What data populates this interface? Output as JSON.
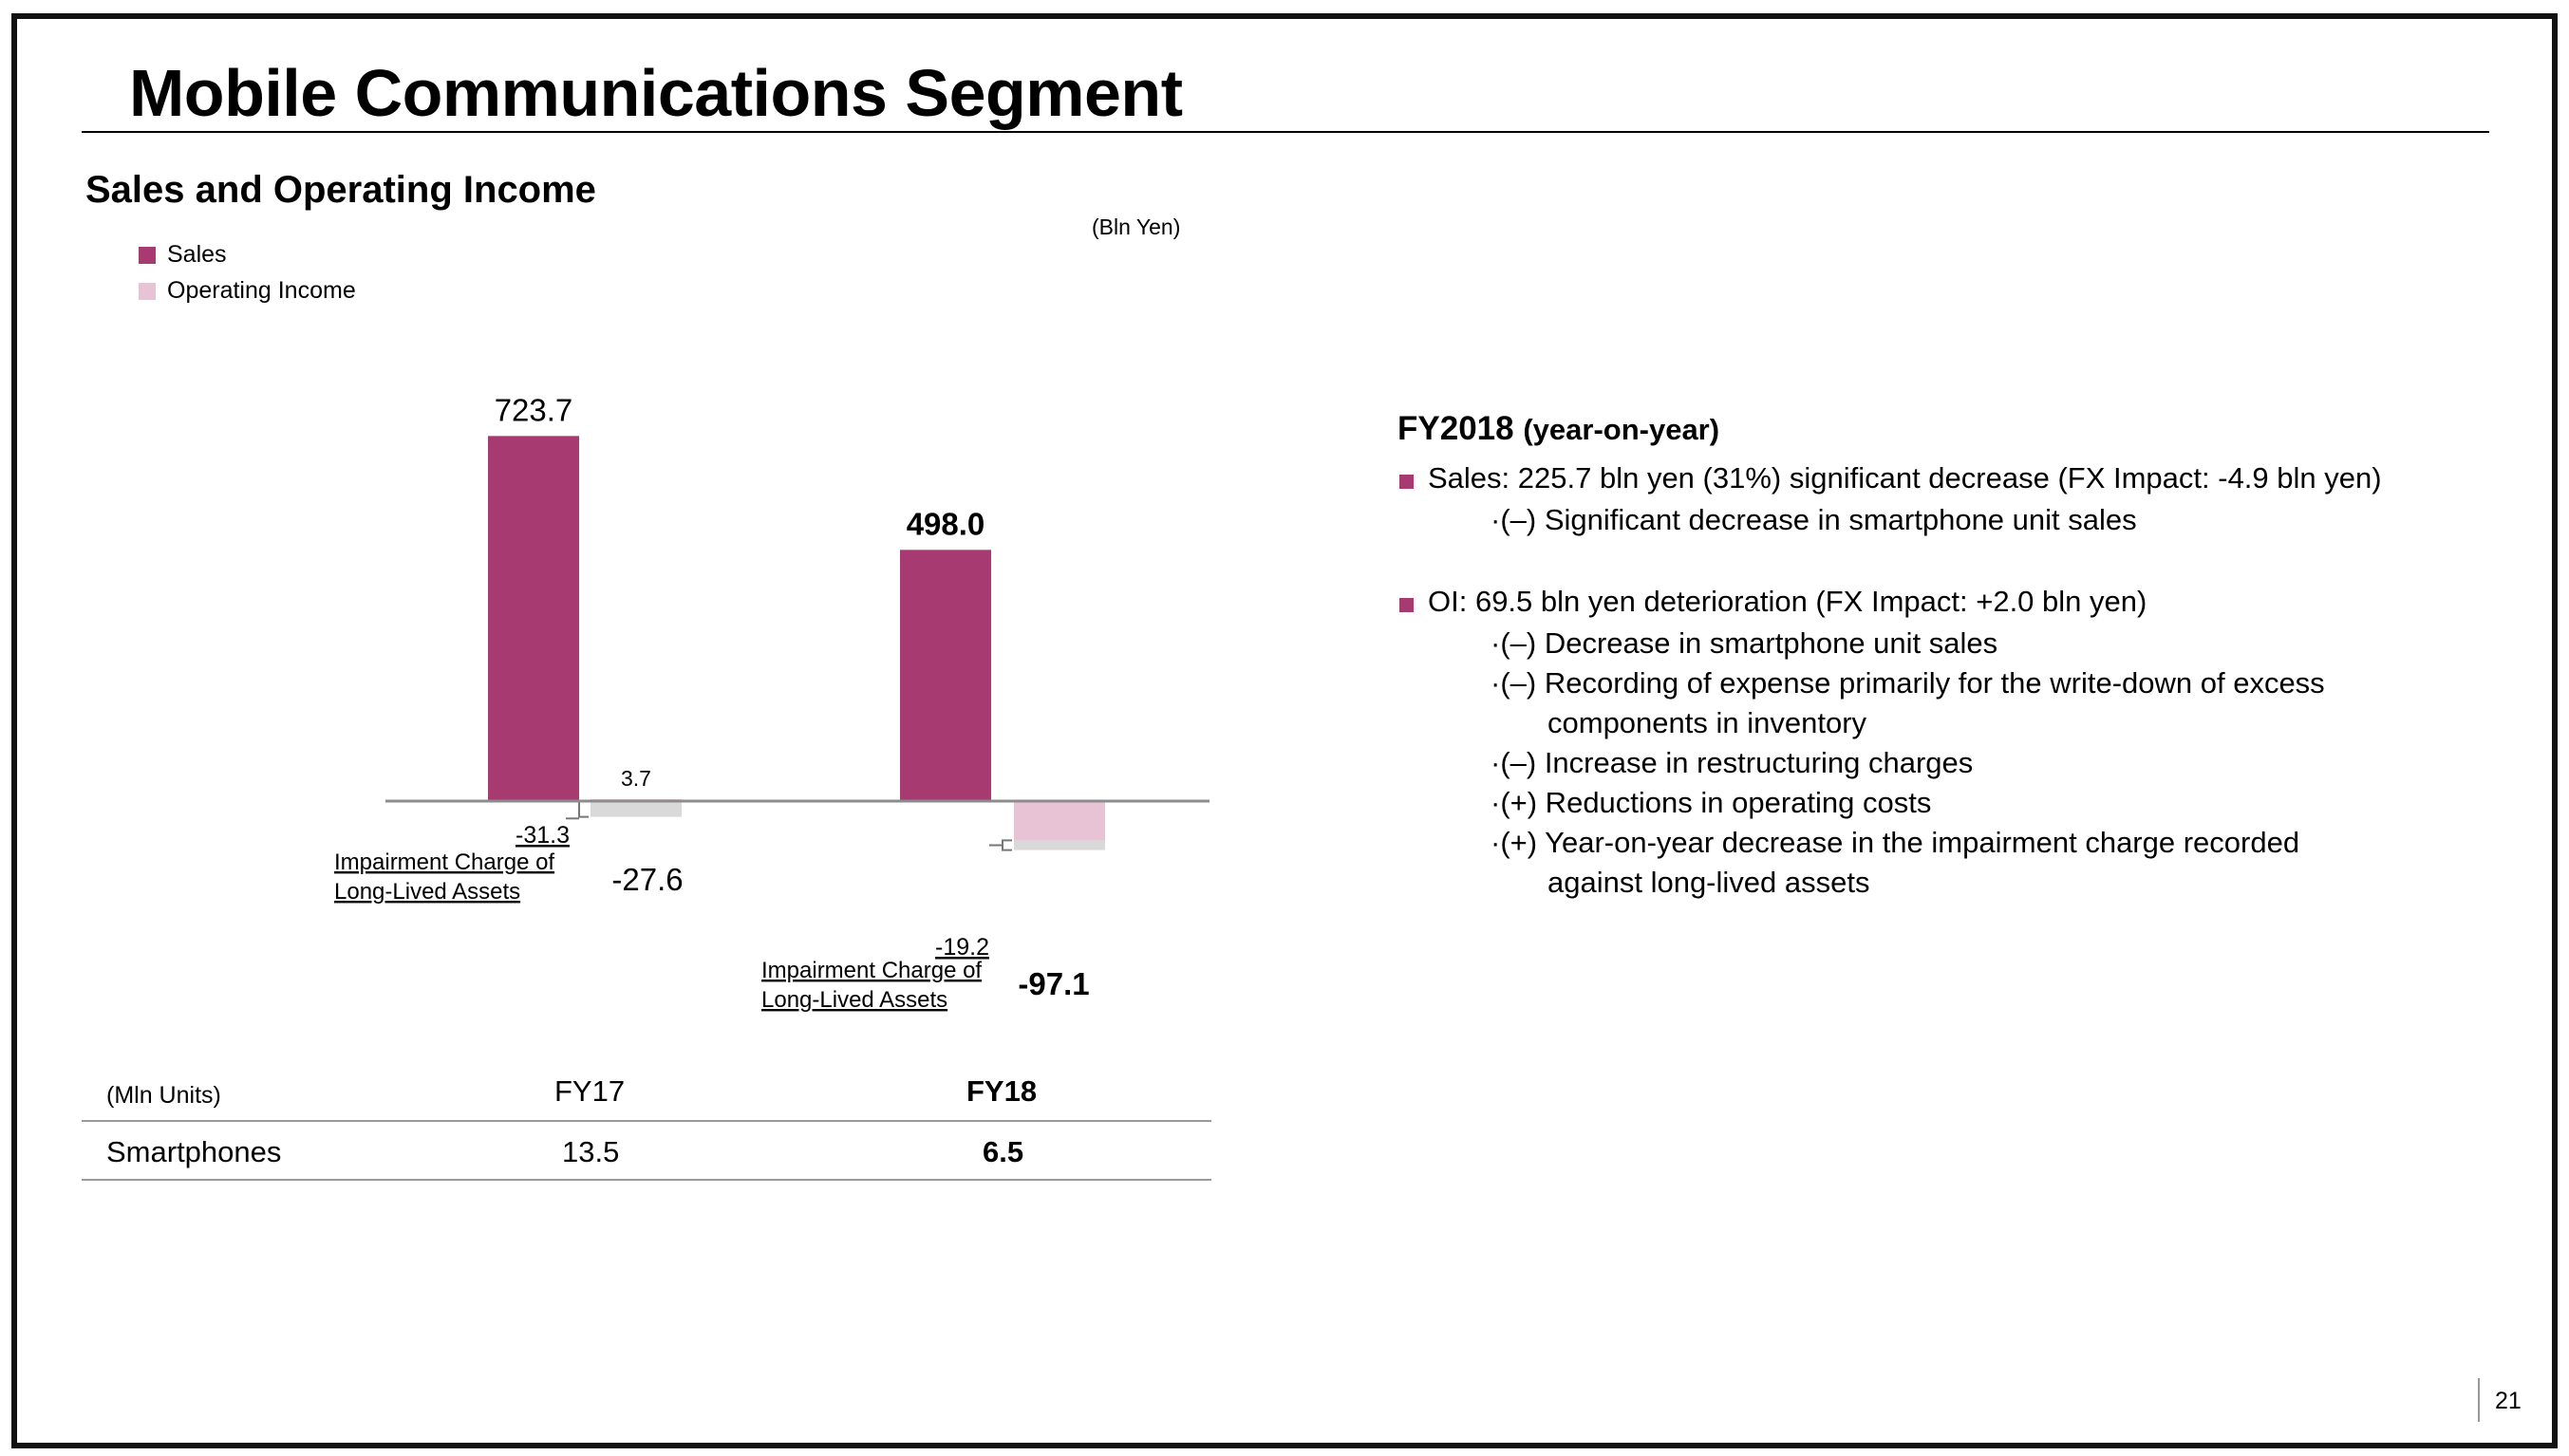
{
  "slide": {
    "title": "Mobile Communications Segment",
    "page_number": "21"
  },
  "left_panel": {
    "subtitle": "Sales and Operating Income",
    "unit": "(Bln Yen)",
    "legend": [
      {
        "label": "Sales",
        "color": "#a83a72"
      },
      {
        "label": "Operating Income",
        "color": "#e8c3d5"
      }
    ]
  },
  "chart_data": {
    "type": "bar",
    "title": "Sales and Operating Income",
    "unit": "(Bln Yen)",
    "categories": [
      "FY17",
      "FY18"
    ],
    "series": [
      {
        "name": "Sales",
        "values": [
          723.7,
          498.0
        ],
        "labels": [
          "723.7",
          "498.0"
        ],
        "color": "#a83a72"
      },
      {
        "name": "Operating Income",
        "values": [
          -27.6,
          -97.1
        ],
        "labels": [
          "-27.6",
          "-97.1"
        ],
        "color": "#e8c3d5"
      }
    ],
    "oi_breakdown": [
      {
        "excluding_impairment": 3.7,
        "excluding_impairment_label": "3.7",
        "impairment": -31.3,
        "impairment_label": "-31.3"
      },
      {
        "excluding_impairment": -77.9,
        "excluding_impairment_label": "",
        "impairment": -19.2,
        "impairment_label": "-19.2"
      }
    ],
    "impairment_annotation": [
      "Impairment Charge of",
      "Long-Lived Assets"
    ],
    "impairment_color": "#d9d9d9",
    "bold_category": "FY18",
    "legend_position": "top-left",
    "grid": false
  },
  "table": {
    "unit_label": "(Mln Units)",
    "columns": [
      "FY17",
      "FY18"
    ],
    "rows": [
      {
        "label": "Smartphones",
        "values": [
          "13.5",
          "6.5"
        ]
      }
    ]
  },
  "commentary": {
    "heading": "FY2018",
    "heading_paren": "(year-on-year)",
    "bullets": [
      {
        "text": "Sales:  225.7 bln yen (31%) significant decrease (FX Impact: -4.9 bln yen)",
        "subs": [
          [
            "·(–) Significant decrease in smartphone unit sales"
          ]
        ]
      },
      {
        "text": "OI: 69.5 bln yen deterioration (FX Impact: +2.0 bln yen)",
        "subs": [
          [
            "·(–) Decrease in smartphone unit sales"
          ],
          [
            "·(–) Recording of expense primarily for the write-down of excess",
            "components in inventory"
          ],
          [
            "·(–) Increase in restructuring charges"
          ],
          [
            "·(+) Reductions in operating costs"
          ],
          [
            "·(+) Year-on-year decrease in the impairment charge recorded",
            "against long-lived assets"
          ]
        ]
      }
    ]
  }
}
